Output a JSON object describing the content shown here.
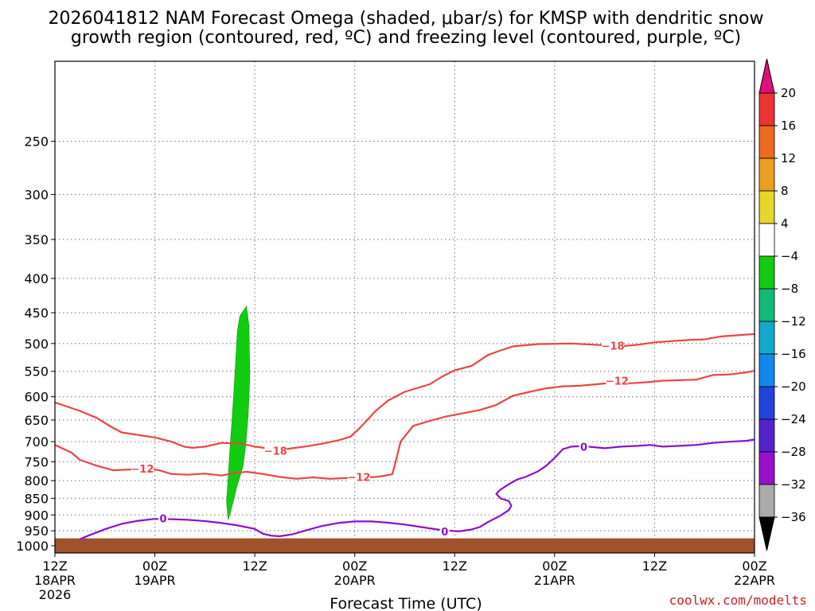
{
  "chart_data": {
    "type": "time-height cross section",
    "title_lines": [
      "2026041812 NAM Forecast Omega (shaded, μbar/s) for KMSP with dendritic snow",
      "growth region (contoured, red, ºC) and freezing level (contoured, purple, ºC)"
    ],
    "xlabel": "Forecast Time (UTC)",
    "credit": "coolwx.com/modelts",
    "x_range_hours": [
      0,
      84
    ],
    "y_levels_hpa": [
      250,
      300,
      350,
      400,
      450,
      500,
      550,
      600,
      650,
      700,
      750,
      800,
      850,
      900,
      950,
      1000
    ],
    "y_range_hpa": [
      190,
      1025
    ],
    "x_ticks": [
      {
        "hour": 0,
        "lines": [
          "12Z",
          "18APR",
          "2026"
        ]
      },
      {
        "hour": 12,
        "lines": [
          "00Z",
          "19APR"
        ]
      },
      {
        "hour": 24,
        "lines": [
          "12Z"
        ]
      },
      {
        "hour": 36,
        "lines": [
          "00Z",
          "20APR"
        ]
      },
      {
        "hour": 48,
        "lines": [
          "12Z"
        ]
      },
      {
        "hour": 60,
        "lines": [
          "00Z",
          "21APR"
        ]
      },
      {
        "hour": 72,
        "lines": [
          "12Z"
        ]
      },
      {
        "hour": 84,
        "lines": [
          "00Z",
          "22APR"
        ]
      }
    ],
    "colorbar": {
      "labels": [
        "20",
        "16",
        "12",
        "8",
        "4",
        "−4",
        "−8",
        "−12",
        "−16",
        "−20",
        "−24",
        "−28",
        "−32",
        "−36"
      ],
      "bins": [
        {
          "range": "16 to 20",
          "color": "#ee3333"
        },
        {
          "range": "12 to 16",
          "color": "#ee6a20"
        },
        {
          "range": "8 to 12",
          "color": "#e8a020"
        },
        {
          "range": "4 to 8",
          "color": "#e5d628"
        },
        {
          "range": "-4 to 4",
          "color": "#ffffff"
        },
        {
          "range": "-8 to -4",
          "color": "#11cc11"
        },
        {
          "range": "-12 to -8",
          "color": "#11bb77"
        },
        {
          "range": "-16 to -12",
          "color": "#11aacc"
        },
        {
          "range": "-20 to -16",
          "color": "#1188ee"
        },
        {
          "range": "-24 to -20",
          "color": "#2244dd"
        },
        {
          "range": "-28 to -24",
          "color": "#5522cc"
        },
        {
          "range": "-32 to -28",
          "color": "#9911cc"
        },
        {
          "range": "-36 to -32",
          "color": "#aaaaaa"
        }
      ],
      "top_arrow_color": "#dd1177",
      "bottom_arrow_color": "#000000"
    },
    "contours": [
      {
        "name": "-18C isotherm (left segment)",
        "color": "#ee4444",
        "label": "−18",
        "label_at": {
          "hour": 26.5,
          "p": 722
        },
        "points": [
          [
            0,
            612
          ],
          [
            3,
            630
          ],
          [
            5,
            645
          ],
          [
            7,
            668
          ],
          [
            8,
            678
          ],
          [
            12,
            690
          ],
          [
            14,
            700
          ],
          [
            15.5,
            712
          ],
          [
            16.5,
            715
          ],
          [
            18,
            712
          ],
          [
            20,
            703
          ],
          [
            22.5,
            705
          ],
          [
            24,
            712
          ],
          [
            25.5,
            716
          ],
          [
            26.5,
            722
          ],
          [
            28.5,
            716
          ],
          [
            30,
            712
          ],
          [
            32,
            705
          ],
          [
            34,
            697
          ],
          [
            35.5,
            688
          ],
          [
            36.5,
            670
          ],
          [
            37.5,
            650
          ],
          [
            38.5,
            630
          ],
          [
            40,
            608
          ],
          [
            42,
            590
          ],
          [
            45,
            575
          ],
          [
            46.5,
            560
          ],
          [
            48,
            548
          ],
          [
            50,
            540
          ],
          [
            51,
            530
          ],
          [
            52,
            520
          ],
          [
            53.5,
            512
          ],
          [
            55,
            505
          ],
          [
            58,
            501
          ],
          [
            62,
            500
          ],
          [
            66,
            503
          ],
          [
            68,
            505
          ],
          [
            70,
            502
          ],
          [
            72,
            498
          ],
          [
            74,
            496
          ],
          [
            76,
            494
          ],
          [
            78,
            493
          ],
          [
            80,
            488
          ],
          [
            82,
            486
          ],
          [
            84,
            484
          ]
        ]
      },
      {
        "name": "-18C isotherm (right label)",
        "color": "#ee4444",
        "label": "−18",
        "label_at": {
          "hour": 67,
          "p": 504
        },
        "points": []
      },
      {
        "name": "-12C isotherm",
        "color": "#ee4444",
        "label": "−12",
        "label_at": {
          "hour": 10.5,
          "p": 768
        },
        "points": [
          [
            0,
            708
          ],
          [
            2,
            727
          ],
          [
            3,
            745
          ],
          [
            5,
            760
          ],
          [
            7,
            772
          ],
          [
            9,
            770
          ],
          [
            11,
            767
          ],
          [
            12.5,
            772
          ],
          [
            14,
            782
          ],
          [
            16,
            784
          ],
          [
            18,
            781
          ],
          [
            20,
            786
          ],
          [
            21.5,
            780
          ],
          [
            23,
            776
          ],
          [
            25,
            782
          ],
          [
            27,
            790
          ],
          [
            29,
            795
          ],
          [
            31,
            791
          ],
          [
            33,
            795
          ],
          [
            35,
            793
          ],
          [
            37,
            792
          ],
          [
            38.5,
            790
          ],
          [
            39.5,
            787
          ],
          [
            40.5,
            783
          ],
          [
            40.8,
            760
          ],
          [
            41.5,
            700
          ],
          [
            43,
            663
          ],
          [
            45,
            652
          ],
          [
            47,
            642
          ],
          [
            49,
            635
          ],
          [
            51,
            628
          ],
          [
            53,
            617
          ],
          [
            55,
            598
          ],
          [
            57,
            590
          ],
          [
            59,
            583
          ],
          [
            61,
            579
          ],
          [
            63,
            578
          ],
          [
            65,
            575
          ],
          [
            67,
            572
          ],
          [
            69,
            573
          ],
          [
            71,
            571
          ],
          [
            73,
            568
          ],
          [
            75,
            567
          ],
          [
            77,
            566
          ],
          [
            79,
            557
          ],
          [
            81,
            556
          ],
          [
            83,
            552
          ],
          [
            84,
            549
          ]
        ]
      },
      {
        "name": "-12C isotherm (mid label)",
        "color": "#ee4444",
        "label": "−12",
        "label_at": {
          "hour": 36.5,
          "p": 790
        },
        "points": []
      },
      {
        "name": "-12C isotherm (right label)",
        "color": "#ee4444",
        "label": "−12",
        "label_at": {
          "hour": 67.5,
          "p": 568
        },
        "points": []
      },
      {
        "name": "0C freezing level",
        "color": "#8811cc",
        "label": "0",
        "label_at": {
          "hour": 13,
          "p": 910
        },
        "points": [
          [
            3,
            978
          ],
          [
            4,
            966
          ],
          [
            6,
            945
          ],
          [
            8,
            928
          ],
          [
            10,
            918
          ],
          [
            12,
            912
          ],
          [
            14,
            913
          ],
          [
            16,
            915
          ],
          [
            18,
            919
          ],
          [
            20,
            925
          ],
          [
            22,
            933
          ],
          [
            24,
            944
          ],
          [
            25,
            960
          ],
          [
            26,
            966
          ],
          [
            27,
            968
          ],
          [
            28.5,
            962
          ],
          [
            30,
            950
          ],
          [
            32,
            935
          ],
          [
            34,
            925
          ],
          [
            36,
            920
          ],
          [
            38,
            920
          ],
          [
            40,
            924
          ],
          [
            42,
            930
          ],
          [
            44,
            938
          ],
          [
            46,
            946
          ],
          [
            47.5,
            950
          ],
          [
            48.5,
            952
          ],
          [
            50,
            946
          ],
          [
            51,
            938
          ],
          [
            52,
            922
          ],
          [
            53.5,
            902
          ],
          [
            54.5,
            885
          ],
          [
            54.8,
            872
          ],
          [
            54.5,
            858
          ],
          [
            53.5,
            850
          ],
          [
            53,
            837
          ],
          [
            53.5,
            825
          ],
          [
            54.5,
            810
          ],
          [
            55.5,
            797
          ],
          [
            56.5,
            790
          ],
          [
            58,
            775
          ],
          [
            59,
            760
          ],
          [
            60,
            740
          ],
          [
            61,
            718
          ],
          [
            62,
            712
          ],
          [
            63,
            711
          ],
          [
            64,
            712
          ],
          [
            65,
            714
          ],
          [
            66,
            716
          ],
          [
            68,
            712
          ],
          [
            70,
            710
          ],
          [
            71.5,
            708
          ],
          [
            73,
            712
          ],
          [
            75,
            710
          ],
          [
            77,
            708
          ],
          [
            79,
            703
          ],
          [
            81,
            700
          ],
          [
            83,
            698
          ],
          [
            84,
            695
          ]
        ]
      },
      {
        "name": "0C freezing level (right label)",
        "color": "#8811cc",
        "label": "0",
        "label_at": {
          "hour": 63.5,
          "p": 712
        },
        "points": []
      },
      {
        "name": "0C freezing level (lower label)",
        "color": "#8811cc",
        "label": "0",
        "label_at": {
          "hour": 46.8,
          "p": 952
        },
        "points": []
      }
    ],
    "omega_shading": [
      {
        "name": "upward motion band -4 to -8 microbar/s",
        "color": "#11cc11",
        "points": [
          [
            20.8,
            915
          ],
          [
            20.6,
            860
          ],
          [
            20.8,
            790
          ],
          [
            21,
            720
          ],
          [
            21.3,
            640
          ],
          [
            21.6,
            560
          ],
          [
            21.9,
            480
          ],
          [
            22.2,
            455
          ],
          [
            23,
            440
          ],
          [
            23.3,
            470
          ],
          [
            23.4,
            560
          ],
          [
            23.2,
            640
          ],
          [
            22.9,
            710
          ],
          [
            22.6,
            760
          ],
          [
            22.2,
            790
          ],
          [
            21.8,
            820
          ],
          [
            21.5,
            850
          ],
          [
            21.1,
            890
          ]
        ]
      }
    ],
    "terrain": {
      "color": "#a0522d",
      "top_hpa": 975,
      "note": "below-ground surface"
    }
  }
}
